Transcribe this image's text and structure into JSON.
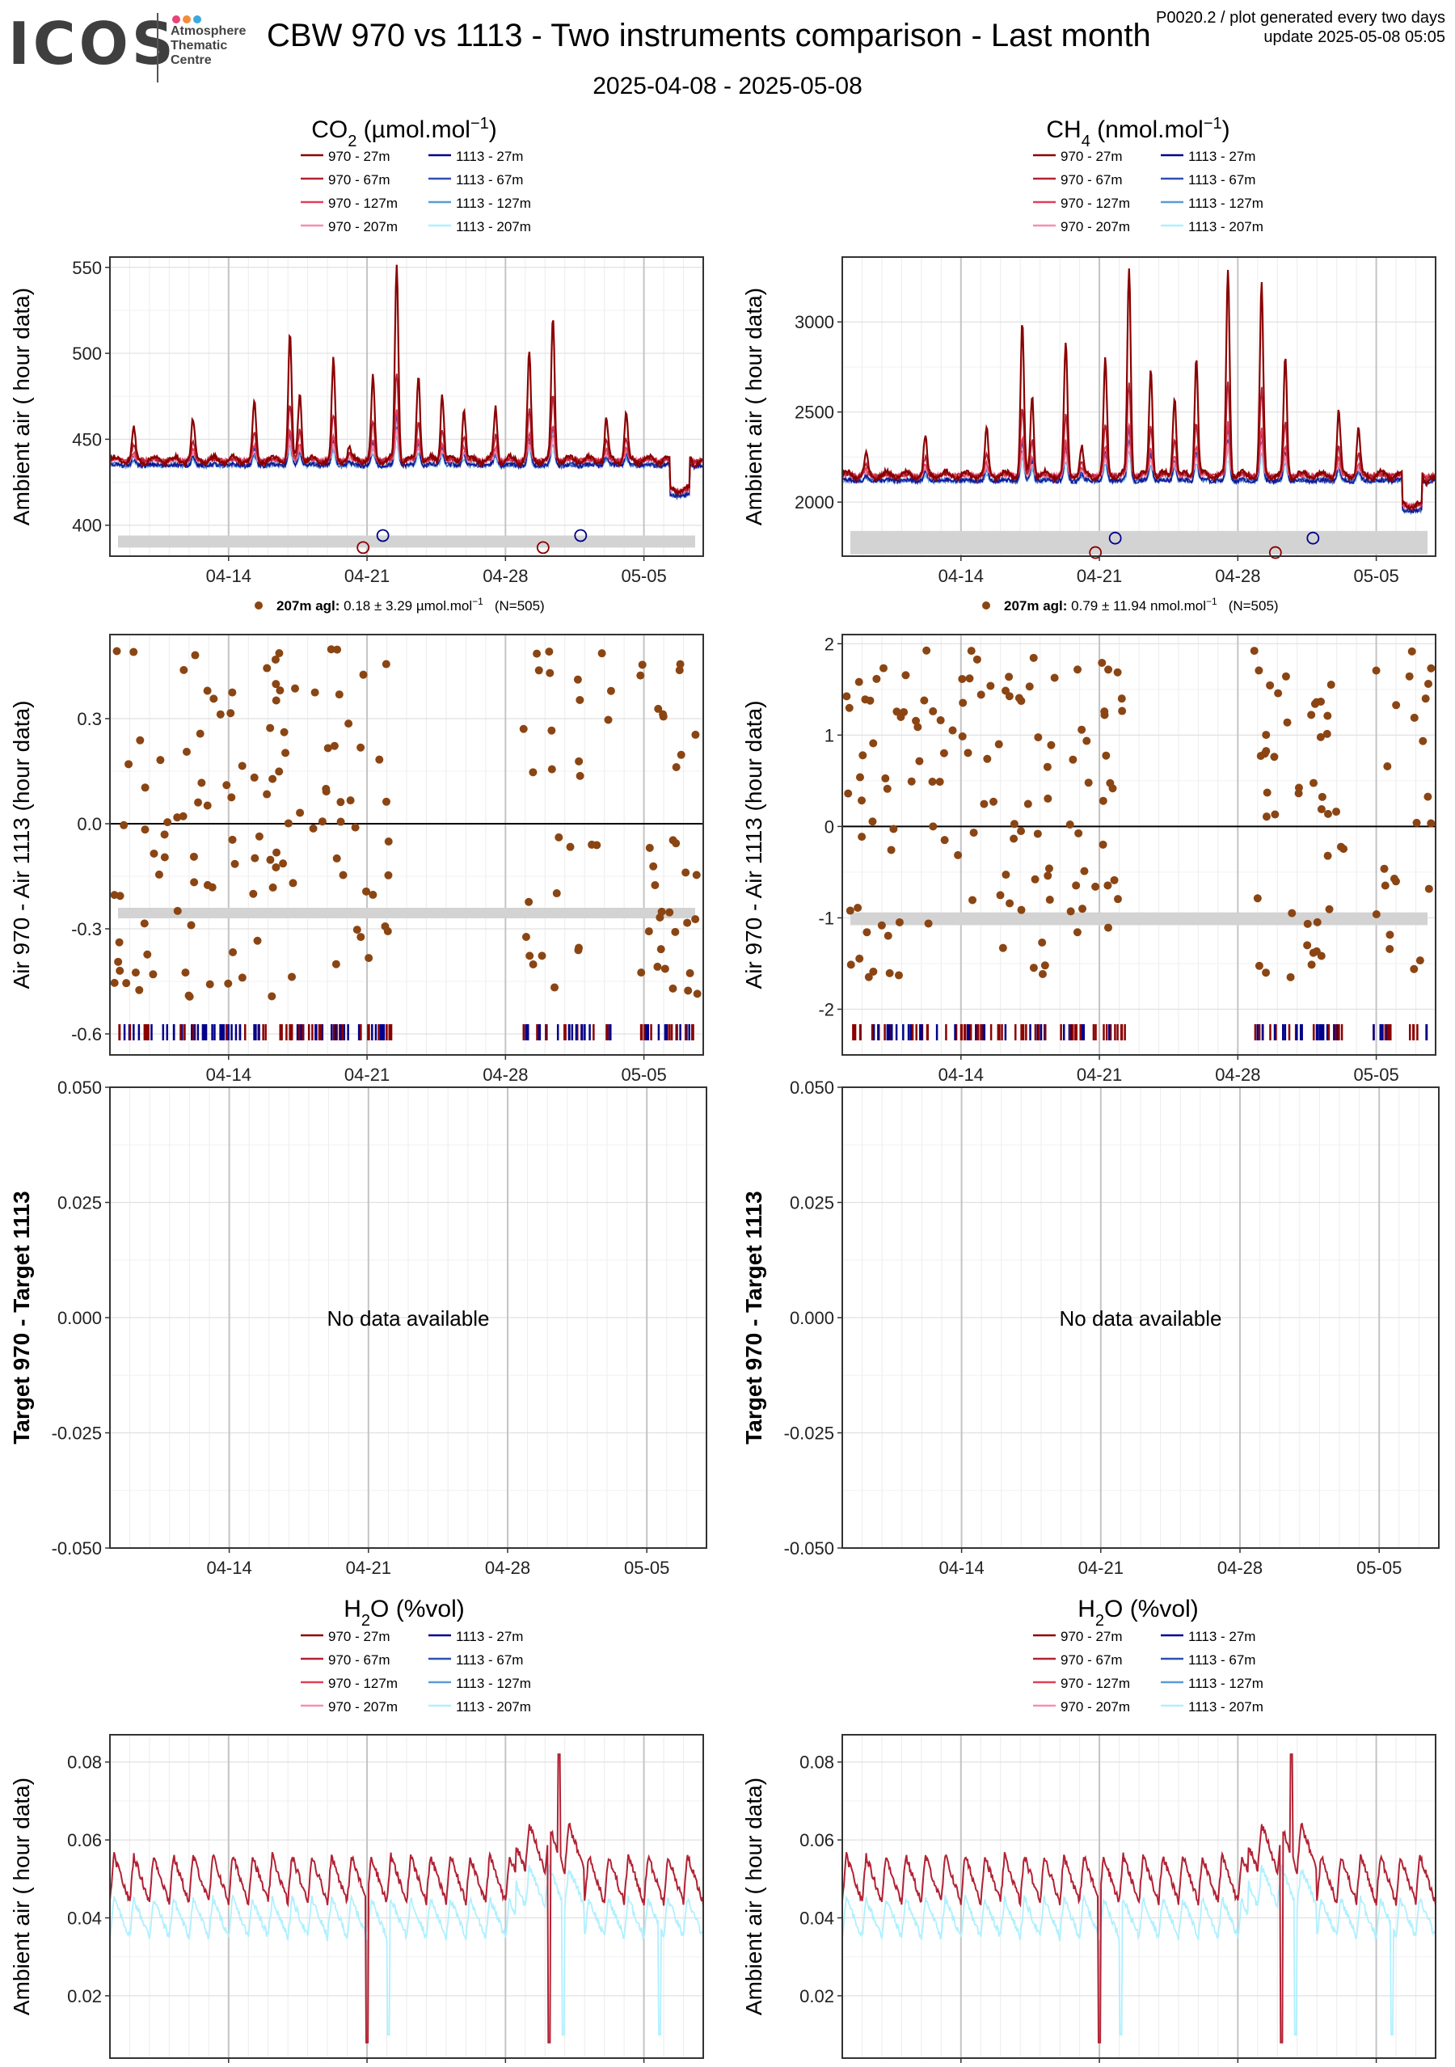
{
  "header": {
    "logo": "ICOS",
    "logo_sub_1": "Atmosphere",
    "logo_sub_2": "Thematic",
    "logo_sub_3": "Centre",
    "title": "CBW 970 vs 1113 - Two instruments comparison - Last month",
    "subtitle": "2025-04-08 - 2025-05-08",
    "meta_line1": "P0020.2 / plot generated every two days",
    "meta_line2": "update  2025-05-08 05:05"
  },
  "colors": {
    "series_970": [
      "#8b0000",
      "#b22234",
      "#e0405a",
      "#f48fb1"
    ],
    "series_1113": [
      "#00008b",
      "#2d4fb5",
      "#5b9bd5",
      "#b0f0ff"
    ],
    "diff_points": "#8b4513",
    "band": "#d3d3d3",
    "logo_dots": [
      "#e4457a",
      "#f28c38",
      "#3ca8e0"
    ]
  },
  "legend_labels": {
    "s970": [
      "970 - 27m",
      "970 - 67m",
      "970 - 127m",
      "970 - 207m"
    ],
    "s1113": [
      "1113 - 27m",
      "1113 - 67m",
      "1113 - 127m",
      "1113 - 207m"
    ]
  },
  "x_axis": {
    "start": "2025-04-08",
    "end": "2025-05-08",
    "ticks": [
      "04-14",
      "04-21",
      "04-28",
      "05-05"
    ],
    "tick_days": [
      6,
      13,
      20,
      27
    ]
  },
  "columns": {
    "left_title_main": "CO",
    "left_title_sub": "2",
    "left_title_unit": " (µmol.mol",
    "left_title_exp": "−1",
    "left_title_close": ")",
    "right_title_main": "CH",
    "right_title_sub": "4",
    "right_title_unit": " (nmol.mol",
    "right_title_exp": "−1",
    "right_title_close": ")",
    "h2o_title": "H",
    "h2o_sub": "2",
    "h2o_rest": "O (%vol)"
  },
  "diff_labels": {
    "co2_bold": "207m agl:",
    "co2_text": " 0.18 ± 3.29 µmol.mol",
    "co2_n": "(N=505)",
    "ch4_bold": "207m agl:",
    "ch4_text": " 0.79 ± 11.94 nmol.mol",
    "ch4_n": "(N=505)",
    "exp": "−1"
  },
  "ylabels": {
    "ambient": "Ambient air ( hour data)",
    "diff": "Air 970 - Air 1113 (hour data)",
    "target": "Target 970 - Target 1113"
  },
  "no_data_text": "No data available",
  "chart_data": [
    {
      "id": "co2_ambient",
      "type": "line",
      "ylim": [
        382,
        556
      ],
      "yticks": [
        400,
        450,
        500,
        550
      ],
      "band": [
        387,
        394
      ],
      "markers_970": [
        [
          12.8,
          387
        ],
        [
          21.9,
          387
        ]
      ],
      "markers_1113": [
        [
          13.8,
          394
        ],
        [
          23.8,
          394
        ]
      ],
      "series_970_27m_peaks": [
        [
          1.2,
          455
        ],
        [
          4.2,
          460
        ],
        [
          7.3,
          471
        ],
        [
          9.1,
          510
        ],
        [
          9.6,
          478
        ],
        [
          11.3,
          495
        ],
        [
          12.1,
          445
        ],
        [
          13.3,
          485
        ],
        [
          14.5,
          552
        ],
        [
          15.6,
          488
        ],
        [
          16.8,
          477
        ],
        [
          17.9,
          468
        ],
        [
          19.5,
          469
        ],
        [
          21.2,
          500
        ],
        [
          22.4,
          520
        ],
        [
          25.1,
          461
        ],
        [
          26.1,
          465
        ],
        [
          29.5,
          435
        ]
      ],
      "base_970": 438,
      "base_1113": 435
    },
    {
      "id": "ch4_ambient",
      "type": "line",
      "ylim": [
        1700,
        3360
      ],
      "yticks": [
        2000,
        2500,
        3000
      ],
      "band": [
        1710,
        1840
      ],
      "markers_970": [
        [
          12.8,
          1720
        ],
        [
          21.9,
          1720
        ]
      ],
      "markers_1113": [
        [
          13.8,
          1800
        ],
        [
          23.8,
          1800
        ]
      ],
      "series_970_27m_peaks": [
        [
          1.2,
          2250
        ],
        [
          4.2,
          2350
        ],
        [
          7.3,
          2400
        ],
        [
          9.1,
          2980
        ],
        [
          9.6,
          2600
        ],
        [
          11.3,
          2880
        ],
        [
          12.1,
          2300
        ],
        [
          13.3,
          2780
        ],
        [
          14.5,
          3300
        ],
        [
          15.6,
          2750
        ],
        [
          16.8,
          2600
        ],
        [
          17.9,
          2800
        ],
        [
          19.5,
          3300
        ],
        [
          21.2,
          3200
        ],
        [
          22.4,
          2800
        ],
        [
          25.1,
          2500
        ],
        [
          26.1,
          2400
        ],
        [
          29.5,
          2100
        ]
      ],
      "base_970": 2150,
      "base_1113": 2120
    },
    {
      "id": "co2_diff",
      "type": "scatter",
      "ylim": [
        -0.66,
        0.54
      ],
      "yticks": [
        -0.6,
        -0.3,
        0.0,
        0.3
      ],
      "band": [
        -0.27,
        -0.24
      ],
      "gaps": [
        [
          14.3,
          20.6
        ],
        [
          25.4,
          26.8
        ]
      ],
      "n": 505
    },
    {
      "id": "ch4_diff",
      "type": "scatter",
      "ylim": [
        -2.5,
        2.1
      ],
      "yticks": [
        -2,
        -1,
        0,
        1,
        2
      ],
      "band": [
        -1.08,
        -0.94
      ],
      "gaps": [
        [
          14.3,
          20.6
        ],
        [
          25.4,
          26.8
        ]
      ],
      "n": 505
    },
    {
      "id": "co2_target",
      "type": "line",
      "ylim": [
        -0.05,
        0.05
      ],
      "yticks": [
        -0.05,
        -0.025,
        0.0,
        0.025,
        0.05
      ],
      "empty": true
    },
    {
      "id": "ch4_target",
      "type": "line",
      "ylim": [
        -0.05,
        0.05
      ],
      "yticks": [
        -0.05,
        -0.025,
        0.0,
        0.025,
        0.05
      ],
      "empty": true
    },
    {
      "id": "h2o_left",
      "type": "line",
      "ylim": [
        0.004,
        0.087
      ],
      "yticks": [
        0.02,
        0.04,
        0.06,
        0.08
      ],
      "dropouts_970": [
        [
          13.0,
          0.008
        ],
        [
          22.2,
          0.008
        ],
        [
          22.7,
          0.082
        ]
      ],
      "dropouts_1113": [
        [
          14.1,
          0.01
        ],
        [
          22.9,
          0.01
        ],
        [
          27.8,
          0.01
        ]
      ],
      "base_970": 0.05,
      "base_1113": 0.04
    },
    {
      "id": "h2o_right",
      "type": "line",
      "ylim": [
        0.004,
        0.087
      ],
      "yticks": [
        0.02,
        0.04,
        0.06,
        0.08
      ],
      "dropouts_970": [
        [
          13.0,
          0.008
        ],
        [
          22.2,
          0.008
        ],
        [
          22.7,
          0.082
        ]
      ],
      "dropouts_1113": [
        [
          14.1,
          0.01
        ],
        [
          22.9,
          0.01
        ],
        [
          27.8,
          0.01
        ]
      ],
      "base_970": 0.05,
      "base_1113": 0.04
    }
  ]
}
